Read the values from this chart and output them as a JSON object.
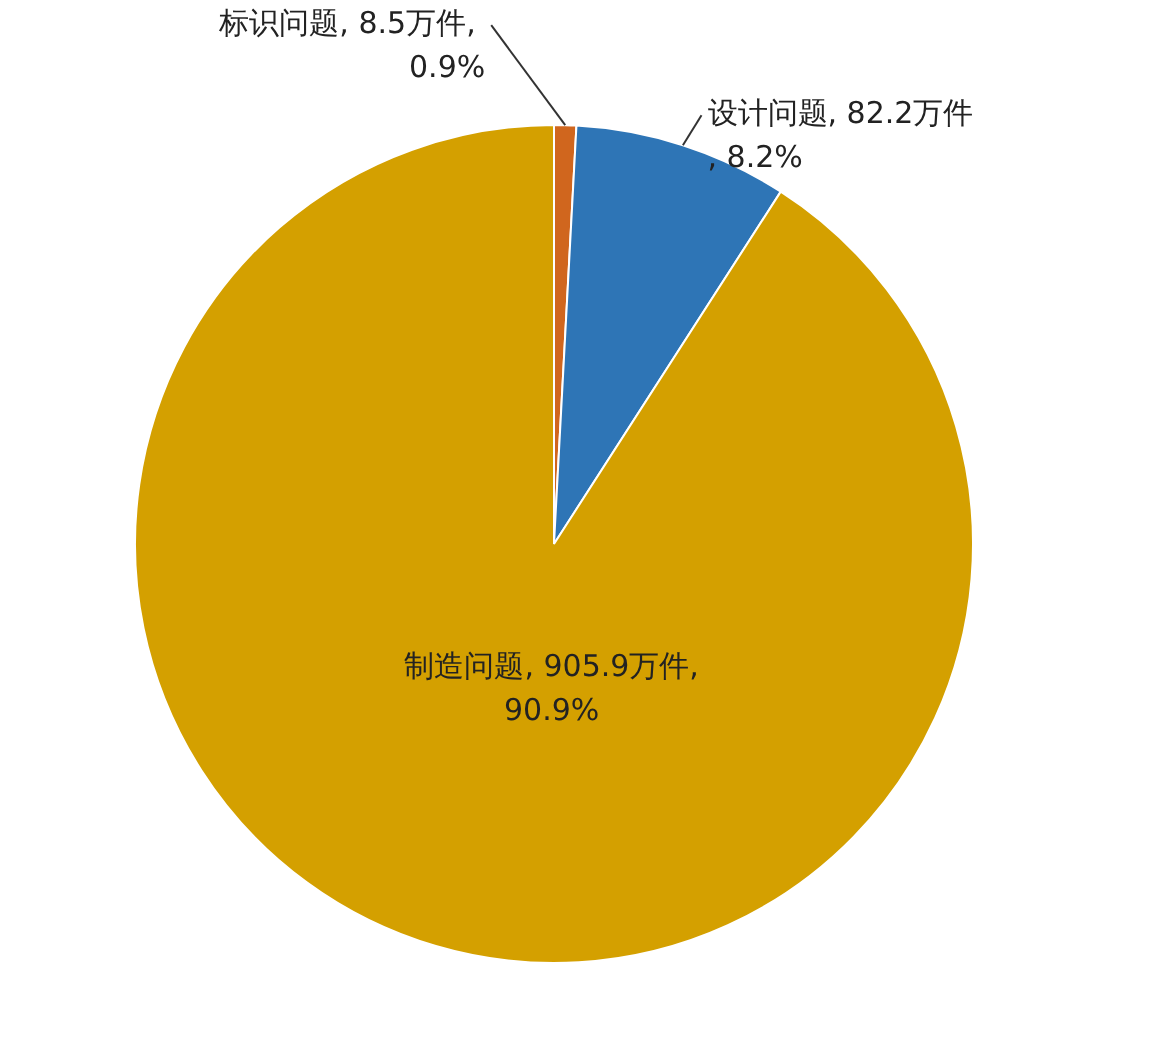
{
  "chart_data": {
    "type": "pie",
    "categories": [
      "标识问题",
      "设计问题",
      "制造问题"
    ],
    "values": [
      8.5,
      82.2,
      905.9
    ],
    "value_labels": [
      ", 8.5万件, 0.9%",
      ", 82.2万件, 8.2%",
      ", 905.9万件,90.9%"
    ],
    "colors": [
      "#d0661e",
      "#2e75b6",
      "#d4a000"
    ],
    "legend": false
  }
}
